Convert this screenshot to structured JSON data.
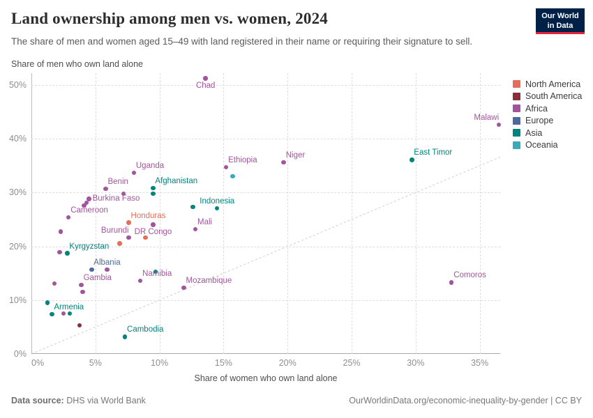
{
  "header": {
    "title": "Land ownership among men vs. women, 2024",
    "subtitle": "The share of men and women aged 15–49 with land registered in their name or requiring their signature to sell.",
    "logo_line1": "Our World",
    "logo_line2": "in Data"
  },
  "footer": {
    "source_label": "Data source:",
    "source_value": " DHS via World Bank",
    "right_text": "OurWorldinData.org/economic-inequality-by-gender | CC BY"
  },
  "chart_data": {
    "type": "scatter",
    "title": "Land ownership among men vs. women, 2024",
    "xlabel": "Share of women who own land alone",
    "ylabel": "Share of men who own land alone",
    "xlim": [
      0,
      36.6
    ],
    "ylim": [
      0,
      52.2
    ],
    "grid": true,
    "diagonal_line": {
      "from": [
        0,
        0
      ],
      "to": [
        36.6,
        36.6
      ]
    },
    "x_ticks": [
      {
        "value": 0,
        "label": "0%"
      },
      {
        "value": 5,
        "label": "5%"
      },
      {
        "value": 10,
        "label": "10%"
      },
      {
        "value": 15,
        "label": "15%"
      },
      {
        "value": 20,
        "label": "20%"
      },
      {
        "value": 25,
        "label": "25%"
      },
      {
        "value": 30,
        "label": "30%"
      },
      {
        "value": 35,
        "label": "35%"
      }
    ],
    "y_ticks": [
      {
        "value": 0,
        "label": "0%"
      },
      {
        "value": 10,
        "label": "10%"
      },
      {
        "value": 20,
        "label": "20%"
      },
      {
        "value": 30,
        "label": "30%"
      },
      {
        "value": 40,
        "label": "40%"
      },
      {
        "value": 50,
        "label": "50%"
      }
    ],
    "legend_position": "right",
    "legend": [
      {
        "label": "North America",
        "color": "#e56e5a"
      },
      {
        "label": "South America",
        "color": "#883039"
      },
      {
        "label": "Africa",
        "color": "#a2559c"
      },
      {
        "label": "Europe",
        "color": "#4c6a9c"
      },
      {
        "label": "Asia",
        "color": "#00847e"
      },
      {
        "label": "Oceania",
        "color": "#38aaba"
      }
    ],
    "points": [
      {
        "country": "Chad",
        "continent": "Africa",
        "x": 13.6,
        "y": 51.2,
        "anchor": "bc"
      },
      {
        "country": "Malawi",
        "continent": "Africa",
        "x": 36.5,
        "y": 42.6,
        "anchor": "al"
      },
      {
        "country": "East Timor",
        "continent": "Asia",
        "x": 29.7,
        "y": 36.1,
        "anchor": "ar"
      },
      {
        "country": "Niger",
        "continent": "Africa",
        "x": 19.7,
        "y": 35.6,
        "anchor": "ar"
      },
      {
        "country": "Ethiopia",
        "continent": "Africa",
        "x": 15.2,
        "y": 34.7,
        "anchor": "ar"
      },
      {
        "country": "Uganda",
        "continent": "Africa",
        "x": 8.0,
        "y": 33.7,
        "anchor": "ar"
      },
      {
        "country": null,
        "continent": "Oceania",
        "x": 15.7,
        "y": 33.0
      },
      {
        "country": "Afghanistan",
        "continent": "Asia",
        "x": 9.5,
        "y": 30.8,
        "anchor": "ar"
      },
      {
        "country": "Benin",
        "continent": "Africa",
        "x": 5.8,
        "y": 30.7,
        "anchor": "ar"
      },
      {
        "country": null,
        "continent": "Africa",
        "x": 7.2,
        "y": 29.8
      },
      {
        "country": null,
        "continent": "Asia",
        "x": 9.5,
        "y": 29.8
      },
      {
        "country": "Burkina Faso",
        "continent": "Africa",
        "x": 4.5,
        "y": 28.8,
        "anchor": "r"
      },
      {
        "country": null,
        "continent": "Africa",
        "x": 4.3,
        "y": 28.1
      },
      {
        "country": null,
        "continent": "Africa",
        "x": 4.1,
        "y": 27.6
      },
      {
        "country": null,
        "continent": "Asia",
        "x": 12.6,
        "y": 27.3
      },
      {
        "country": "Indonesia",
        "continent": "Asia",
        "x": 14.5,
        "y": 27.1,
        "anchor": "ac"
      },
      {
        "country": "Cameroon",
        "continent": "Africa",
        "x": 2.9,
        "y": 25.4,
        "anchor": "ar"
      },
      {
        "country": "Honduras",
        "continent": "North America",
        "x": 7.6,
        "y": 24.4,
        "anchor": "ar"
      },
      {
        "country": "DR Congo",
        "continent": "Africa",
        "x": 9.5,
        "y": 24.0,
        "anchor": "bc"
      },
      {
        "country": "Mali",
        "continent": "Africa",
        "x": 12.8,
        "y": 23.2,
        "anchor": "ar"
      },
      {
        "country": null,
        "continent": "Africa",
        "x": 2.3,
        "y": 22.7
      },
      {
        "country": "Burundi",
        "continent": "Africa",
        "x": 7.6,
        "y": 21.6,
        "anchor": "al"
      },
      {
        "country": null,
        "continent": "North America",
        "x": 8.9,
        "y": 21.6
      },
      {
        "country": null,
        "continent": "North America",
        "x": 6.9,
        "y": 20.5
      },
      {
        "country": null,
        "continent": "Africa",
        "x": 2.2,
        "y": 18.9
      },
      {
        "country": "Kyrgyzstan",
        "continent": "Asia",
        "x": 2.8,
        "y": 18.7,
        "anchor": "ar"
      },
      {
        "country": "Albania",
        "continent": "Europe",
        "x": 4.7,
        "y": 15.7,
        "anchor": "ar"
      },
      {
        "country": null,
        "continent": "Africa",
        "x": 5.9,
        "y": 15.7
      },
      {
        "country": null,
        "continent": "Asia",
        "x": 9.7,
        "y": 15.3
      },
      {
        "country": "Namibia",
        "continent": "Africa",
        "x": 8.5,
        "y": 13.6,
        "anchor": "ar"
      },
      {
        "country": "Comoros",
        "continent": "Africa",
        "x": 32.8,
        "y": 13.3,
        "anchor": "ar"
      },
      {
        "country": null,
        "continent": "Africa",
        "x": 1.8,
        "y": 13.1
      },
      {
        "country": "Gambia",
        "continent": "Africa",
        "x": 3.9,
        "y": 12.8,
        "anchor": "ar"
      },
      {
        "country": "Mozambique",
        "continent": "Africa",
        "x": 11.9,
        "y": 12.3,
        "anchor": "ar"
      },
      {
        "country": null,
        "continent": "Africa",
        "x": 4.0,
        "y": 11.5
      },
      {
        "country": null,
        "continent": "Asia",
        "x": 1.25,
        "y": 9.5
      },
      {
        "country": "Armenia",
        "continent": "Asia",
        "x": 1.6,
        "y": 7.4,
        "anchor": "ar"
      },
      {
        "country": null,
        "continent": "Africa",
        "x": 2.5,
        "y": 7.5
      },
      {
        "country": null,
        "continent": "Asia",
        "x": 3.0,
        "y": 7.5
      },
      {
        "country": null,
        "continent": "South America",
        "x": 3.75,
        "y": 5.3
      },
      {
        "country": "Cambodia",
        "continent": "Asia",
        "x": 7.3,
        "y": 3.2,
        "anchor": "ar"
      }
    ]
  }
}
